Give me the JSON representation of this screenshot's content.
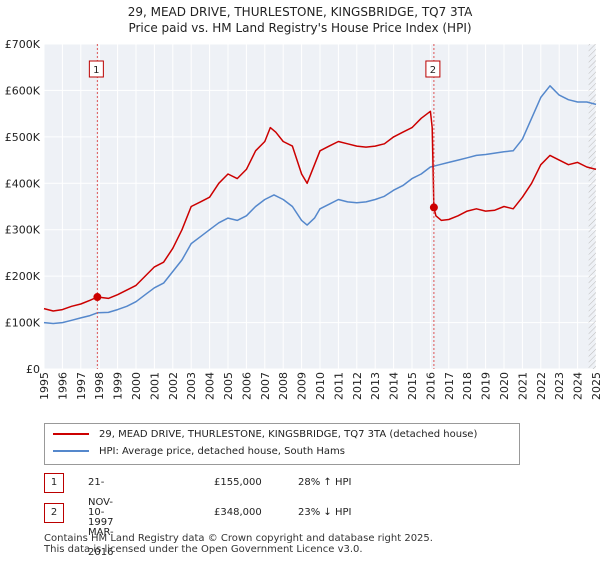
{
  "chart_data": {
    "type": "line",
    "title_lines": [
      "29, MEAD DRIVE, THURLESTONE, KINGSBRIDGE, TQ7 3TA",
      "Price paid vs. HM Land Registry's House Price Index (HPI)"
    ],
    "y_tick_labels": [
      "£0",
      "£100K",
      "£200K",
      "£300K",
      "£400K",
      "£500K",
      "£600K",
      "£700K"
    ],
    "y_ticks": [
      0,
      100000,
      200000,
      300000,
      400000,
      500000,
      600000,
      700000
    ],
    "ylim": [
      0,
      700000
    ],
    "xlim": [
      1995,
      2025
    ],
    "x_tick_labels": [
      "1995",
      "1996",
      "1997",
      "1998",
      "1999",
      "2000",
      "2001",
      "2002",
      "2003",
      "2004",
      "2005",
      "2006",
      "2007",
      "2008",
      "2009",
      "2010",
      "2011",
      "2012",
      "2013",
      "2014",
      "2015",
      "2016",
      "2017",
      "2018",
      "2019",
      "2020",
      "2021",
      "2022",
      "2023",
      "2024",
      "2025"
    ],
    "grid": true,
    "series": [
      {
        "name": "29, MEAD DRIVE, THURLESTONE, KINGSBRIDGE, TQ7 3TA (detached house)",
        "color": "#cc0000",
        "x": [
          1995.0,
          1995.5,
          1996.0,
          1996.5,
          1997.0,
          1997.5,
          1997.9,
          1998.5,
          1999.0,
          1999.5,
          2000.0,
          2000.5,
          2001.0,
          2001.5,
          2002.0,
          2002.5,
          2003.0,
          2003.5,
          2004.0,
          2004.5,
          2005.0,
          2005.5,
          2006.0,
          2006.5,
          2007.0,
          2007.3,
          2007.6,
          2008.0,
          2008.5,
          2009.0,
          2009.3,
          2009.7,
          2010.0,
          2010.5,
          2011.0,
          2011.5,
          2012.0,
          2012.5,
          2013.0,
          2013.5,
          2014.0,
          2014.5,
          2015.0,
          2015.5,
          2016.0,
          2016.1,
          2016.19,
          2016.3,
          2016.6,
          2017.0,
          2017.5,
          2018.0,
          2018.5,
          2019.0,
          2019.5,
          2020.0,
          2020.5,
          2021.0,
          2021.5,
          2022.0,
          2022.5,
          2023.0,
          2023.5,
          2024.0,
          2024.5,
          2025.0
        ],
        "y": [
          130000,
          125000,
          128000,
          135000,
          140000,
          148000,
          155000,
          152000,
          160000,
          170000,
          180000,
          200000,
          220000,
          230000,
          260000,
          300000,
          350000,
          360000,
          370000,
          400000,
          420000,
          410000,
          430000,
          470000,
          490000,
          520000,
          510000,
          490000,
          480000,
          420000,
          400000,
          440000,
          470000,
          480000,
          490000,
          485000,
          480000,
          478000,
          480000,
          485000,
          500000,
          510000,
          520000,
          540000,
          555000,
          520000,
          348000,
          330000,
          320000,
          322000,
          330000,
          340000,
          345000,
          340000,
          342000,
          350000,
          345000,
          370000,
          400000,
          440000,
          460000,
          450000,
          440000,
          445000,
          435000,
          430000
        ]
      },
      {
        "name": "HPI: Average price, detached house, South Hams",
        "color": "#5588cc",
        "x": [
          1995.0,
          1995.5,
          1996.0,
          1996.5,
          1997.0,
          1997.5,
          1997.9,
          1998.5,
          1999.0,
          1999.5,
          2000.0,
          2000.5,
          2001.0,
          2001.5,
          2002.0,
          2002.5,
          2003.0,
          2003.5,
          2004.0,
          2004.5,
          2005.0,
          2005.5,
          2006.0,
          2006.5,
          2007.0,
          2007.5,
          2008.0,
          2008.5,
          2009.0,
          2009.3,
          2009.7,
          2010.0,
          2010.5,
          2011.0,
          2011.5,
          2012.0,
          2012.5,
          2013.0,
          2013.5,
          2014.0,
          2014.5,
          2015.0,
          2015.5,
          2016.0,
          2016.5,
          2017.0,
          2017.5,
          2018.0,
          2018.5,
          2019.0,
          2019.5,
          2020.0,
          2020.5,
          2021.0,
          2021.5,
          2022.0,
          2022.5,
          2023.0,
          2023.5,
          2024.0,
          2024.5,
          2025.0
        ],
        "y": [
          100000,
          98000,
          100000,
          105000,
          110000,
          115000,
          121000,
          122000,
          128000,
          135000,
          145000,
          160000,
          175000,
          185000,
          210000,
          235000,
          270000,
          285000,
          300000,
          315000,
          325000,
          320000,
          330000,
          350000,
          365000,
          375000,
          365000,
          350000,
          320000,
          310000,
          325000,
          345000,
          355000,
          365000,
          360000,
          358000,
          360000,
          365000,
          372000,
          385000,
          395000,
          410000,
          420000,
          435000,
          440000,
          445000,
          450000,
          455000,
          460000,
          462000,
          465000,
          468000,
          470000,
          495000,
          540000,
          585000,
          610000,
          590000,
          580000,
          575000,
          575000,
          570000
        ]
      }
    ],
    "sale_points": [
      {
        "label": "1",
        "x": 1997.9,
        "y": 155000
      },
      {
        "label": "2",
        "x": 2016.19,
        "y": 348000
      }
    ],
    "hatch_after": 2024.6
  },
  "legend": {
    "items": [
      {
        "label": "29, MEAD DRIVE, THURLESTONE, KINGSBRIDGE, TQ7 3TA (detached house)",
        "color": "#cc0000"
      },
      {
        "label": "HPI: Average price, detached house, South Hams",
        "color": "#5588cc"
      }
    ]
  },
  "sales": [
    {
      "num": "1",
      "date": "21-NOV-1997",
      "price": "£155,000",
      "hpi": "28% ↑ HPI"
    },
    {
      "num": "2",
      "date": "10-MAR-2016",
      "price": "£348,000",
      "hpi": "23% ↓ HPI"
    }
  ],
  "footer": {
    "line1": "Contains HM Land Registry data © Crown copyright and database right 2025.",
    "line2": "This data is licensed under the Open Government Licence v3.0."
  }
}
